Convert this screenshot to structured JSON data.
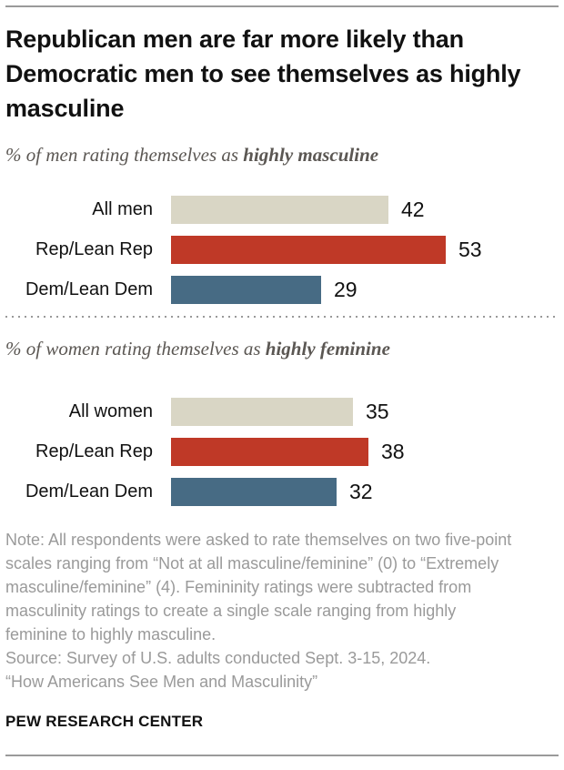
{
  "header": {
    "title": "Republican men are far more likely than Democratic men to see themselves as highly masculine"
  },
  "chart_data": [
    {
      "type": "bar",
      "orientation": "horizontal",
      "title_prefix": "% of men rating themselves as ",
      "title_emphasis": "highly masculine",
      "categories": [
        "All men",
        "Rep/Lean Rep",
        "Dem/Lean Dem"
      ],
      "values": [
        42,
        53,
        29
      ],
      "bar_colors": [
        "#D9D6C5",
        "#BF3927",
        "#476B84"
      ],
      "value_labels_shown": true,
      "axes_shown": false,
      "grid": false,
      "legend": "none",
      "xlim": [
        0,
        60
      ]
    },
    {
      "type": "bar",
      "orientation": "horizontal",
      "title_prefix": "% of women rating themselves as ",
      "title_emphasis": "highly feminine",
      "categories": [
        "All women",
        "Rep/Lean Rep",
        "Dem/Lean Dem"
      ],
      "values": [
        35,
        38,
        32
      ],
      "bar_colors": [
        "#D9D6C5",
        "#BF3927",
        "#476B84"
      ],
      "value_labels_shown": true,
      "axes_shown": false,
      "grid": false,
      "legend": "none",
      "xlim": [
        0,
        60
      ]
    }
  ],
  "colors": {
    "bar_neutral": "#D9D6C5",
    "bar_republican": "#BF3927",
    "bar_democrat": "#476B84",
    "rule_gray": "#9a9a9a",
    "note_gray": "#9a9a9a",
    "subtitle_gray": "#5b5753",
    "title_black": "#111111"
  },
  "footer": {
    "note": "Note: All respondents were asked to rate themselves on two five-point scales ranging from “Not at all masculine/feminine” (0) to “Extremely masculine/feminine” (4). Femininity ratings were subtracted from masculinity ratings to create a single scale ranging from highly feminine to highly masculine.",
    "source": "Source: Survey of U.S. adults conducted Sept. 3-15, 2024.",
    "report": "“How Americans See Men and Masculinity”",
    "brand": "PEW RESEARCH CENTER"
  }
}
